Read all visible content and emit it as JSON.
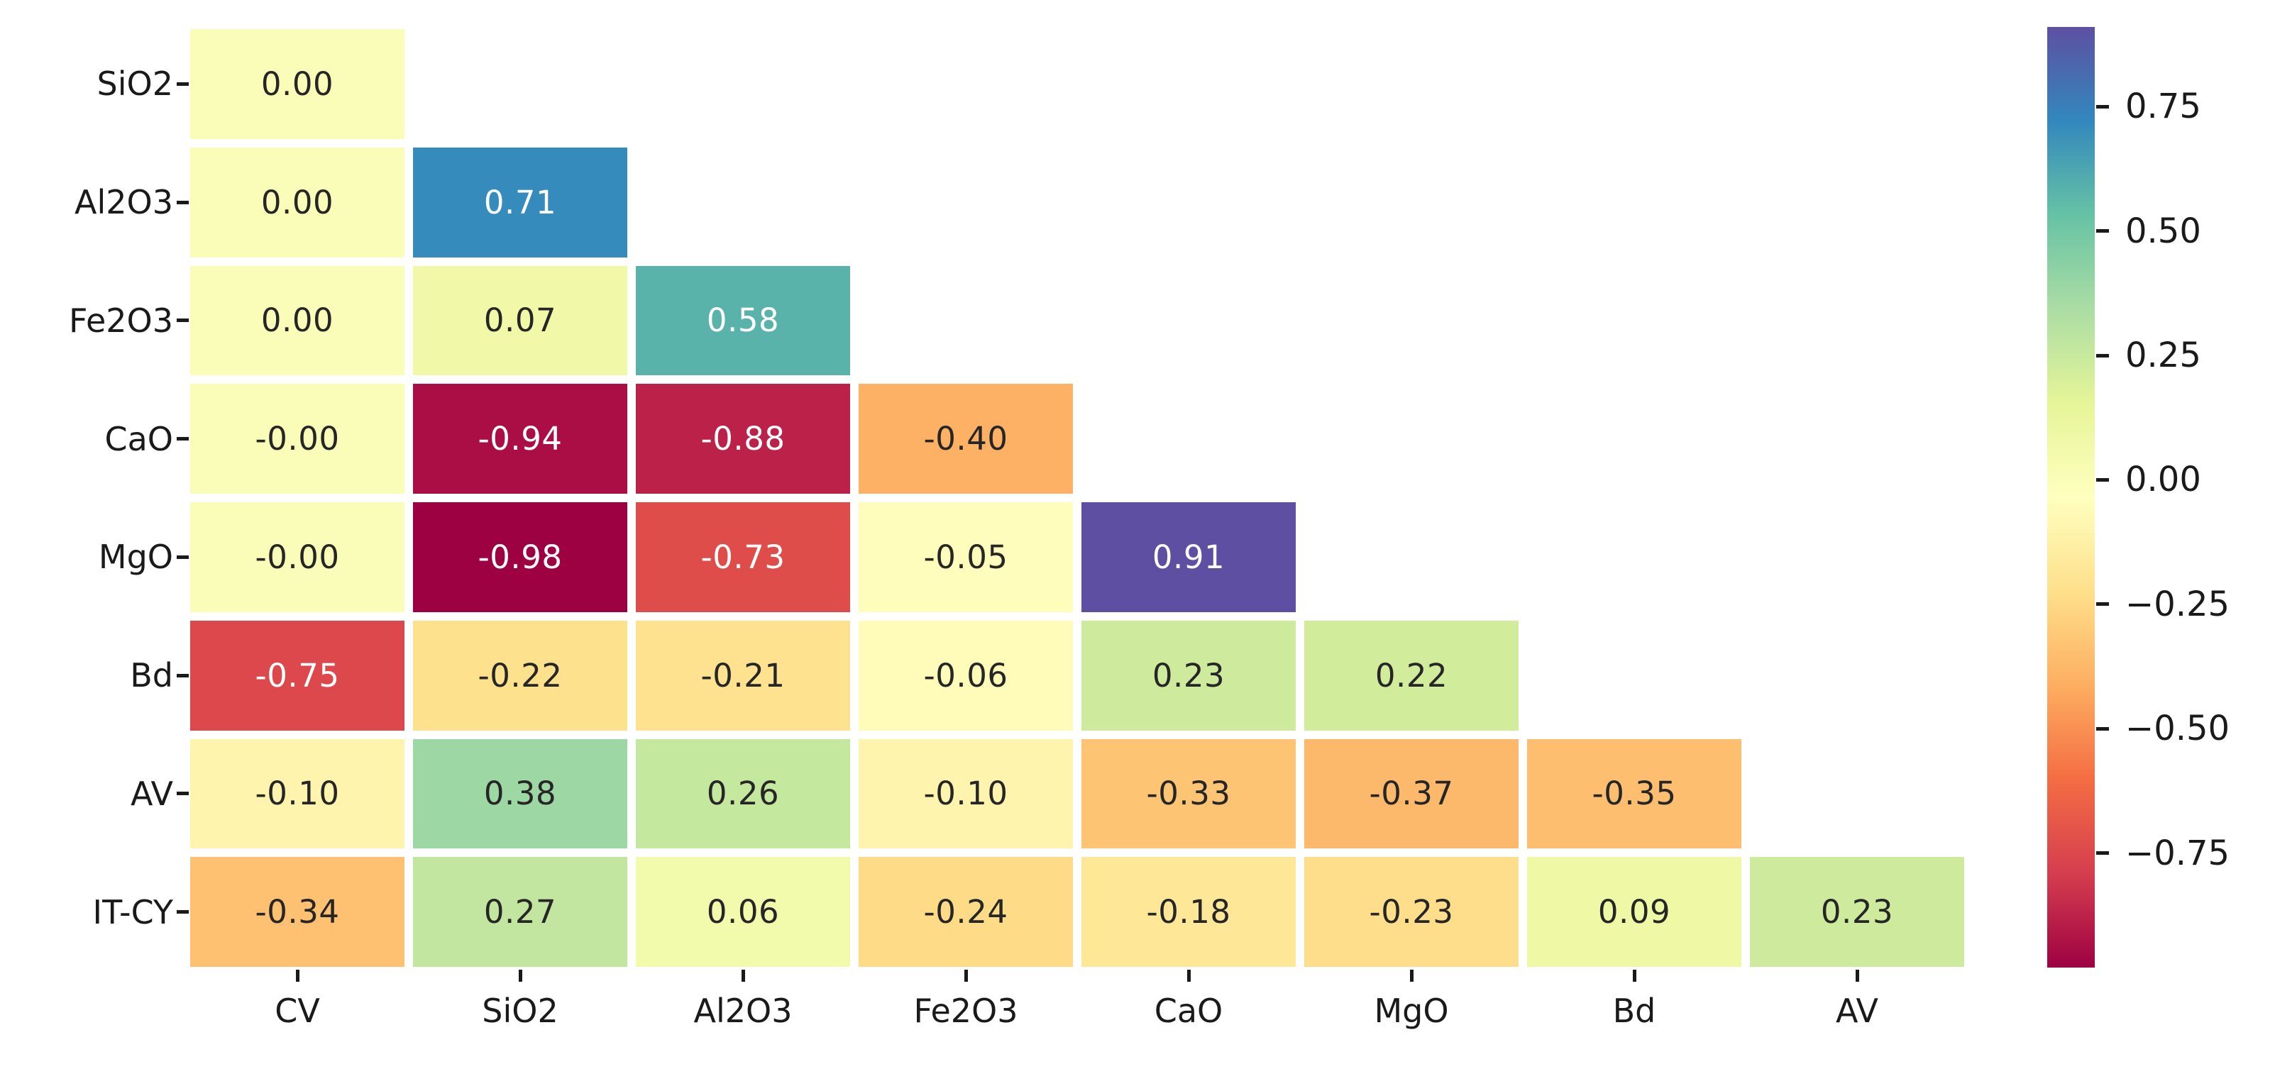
{
  "figure": {
    "background": "#ffffff"
  },
  "chart_data": {
    "type": "heatmap",
    "subtype": "correlation-matrix-lower-triangle",
    "title": "",
    "xlabel": "",
    "ylabel": "",
    "rows": [
      "SiO2",
      "Al2O3",
      "Fe2O3",
      "CaO",
      "MgO",
      "Bd",
      "AV",
      "IT-CY"
    ],
    "columns": [
      "CV",
      "SiO2",
      "Al2O3",
      "Fe2O3",
      "CaO",
      "MgO",
      "Bd",
      "AV"
    ],
    "values": [
      [
        0.0
      ],
      [
        0.0,
        0.71
      ],
      [
        0.0,
        0.07,
        0.58
      ],
      [
        -0.0,
        -0.94,
        -0.88,
        -0.4
      ],
      [
        -0.0,
        -0.98,
        -0.73,
        -0.05,
        0.91
      ],
      [
        -0.75,
        -0.22,
        -0.21,
        -0.06,
        0.23,
        0.22
      ],
      [
        -0.1,
        0.38,
        0.26,
        -0.1,
        -0.33,
        -0.37,
        -0.35
      ],
      [
        -0.34,
        0.27,
        0.06,
        -0.24,
        -0.18,
        -0.23,
        0.09,
        0.23
      ]
    ],
    "cell_labels": [
      [
        "0.00"
      ],
      [
        "0.00",
        "0.71"
      ],
      [
        "0.00",
        "0.07",
        "0.58"
      ],
      [
        "-0.00",
        "-0.94",
        "-0.88",
        "-0.40"
      ],
      [
        "-0.00",
        "-0.98",
        "-0.73",
        "-0.05",
        "0.91"
      ],
      [
        "-0.75",
        "-0.22",
        "-0.21",
        "-0.06",
        "0.23",
        "0.22"
      ],
      [
        "-0.10",
        "0.38",
        "0.26",
        "-0.10",
        "-0.33",
        "-0.37",
        "-0.35"
      ],
      [
        "-0.34",
        "0.27",
        "0.06",
        "-0.24",
        "-0.18",
        "-0.23",
        "0.09",
        "0.23"
      ]
    ],
    "colormap": {
      "name": "Spectral",
      "stops": [
        "#9e0142",
        "#d53e4f",
        "#f46d43",
        "#fdae61",
        "#fee08b",
        "#ffffbf",
        "#e6f598",
        "#abdda4",
        "#66c2a5",
        "#3288bd",
        "#5e4fa2"
      ],
      "vmin": -0.98,
      "vmax": 0.91
    },
    "colorbar_ticks": [
      {
        "label": "0.75",
        "value": 0.75
      },
      {
        "label": "0.50",
        "value": 0.5
      },
      {
        "label": "0.25",
        "value": 0.25
      },
      {
        "label": "0.00",
        "value": 0.0
      },
      {
        "label": "−0.25",
        "value": -0.25
      },
      {
        "label": "−0.50",
        "value": -0.5
      },
      {
        "label": "−0.75",
        "value": -0.75
      }
    ],
    "annotation_text_colors": {
      "dark": "#262626",
      "light": "#ffffff"
    },
    "legend": "none",
    "grid": "off"
  }
}
